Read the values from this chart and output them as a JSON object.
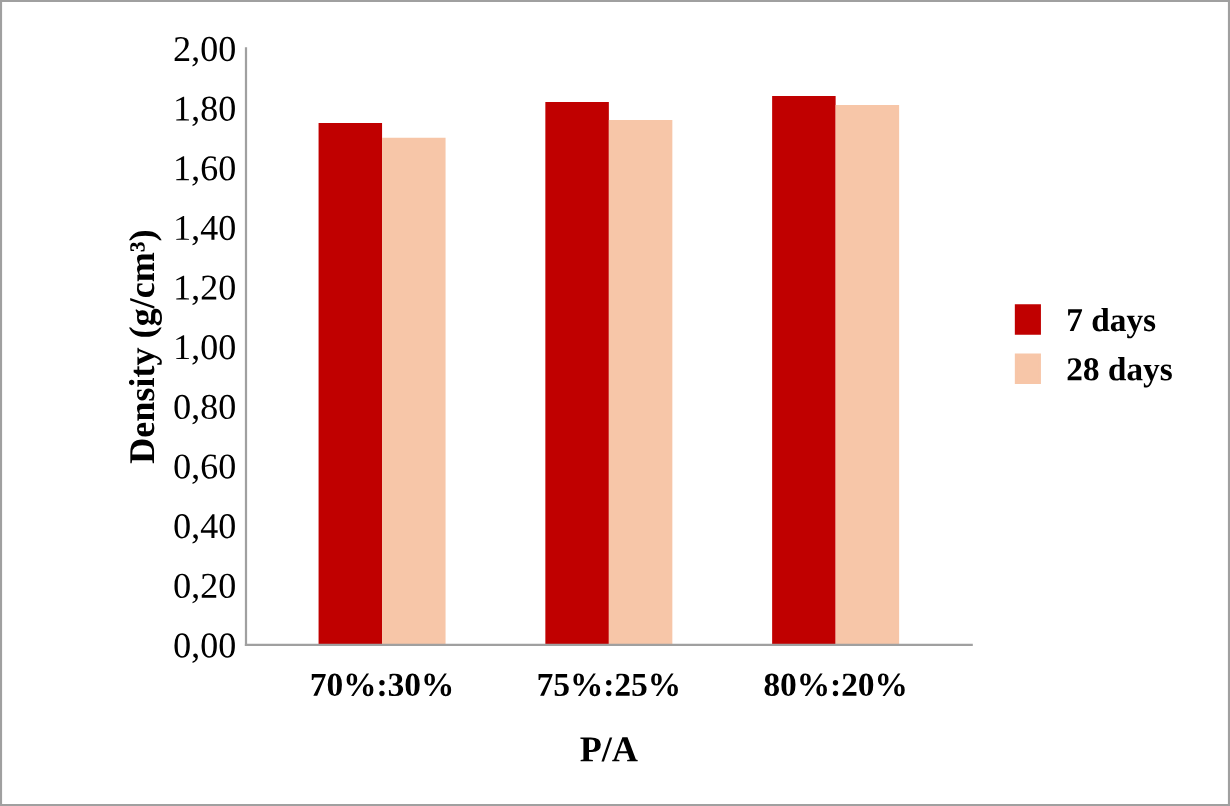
{
  "chart_data": {
    "type": "bar",
    "xlabel": "P/A",
    "ylabel": "Density (g/cm³)",
    "categories": [
      "70%:30%",
      "75%:25%",
      "80%:20%"
    ],
    "series": [
      {
        "name": "7 days",
        "color": "#c00000",
        "values": [
          1.75,
          1.82,
          1.84
        ]
      },
      {
        "name": "28 days",
        "color": "#f7c6a8",
        "values": [
          1.7,
          1.76,
          1.81
        ]
      }
    ],
    "ylim": [
      0,
      2
    ],
    "yticks": [
      {
        "value": 0,
        "label": "0,00"
      },
      {
        "value": 0.2,
        "label": "0,20"
      },
      {
        "value": 0.4,
        "label": "0,40"
      },
      {
        "value": 0.6,
        "label": "0,60"
      },
      {
        "value": 0.8,
        "label": "0,80"
      },
      {
        "value": 1,
        "label": "1,00"
      },
      {
        "value": 1.2,
        "label": "1,20"
      },
      {
        "value": 1.4,
        "label": "1,40"
      },
      {
        "value": 1.6,
        "label": "1,60"
      },
      {
        "value": 1.8,
        "label": "1,80"
      },
      {
        "value": 2,
        "label": "2,00"
      }
    ],
    "grid": false,
    "legend": "right"
  }
}
